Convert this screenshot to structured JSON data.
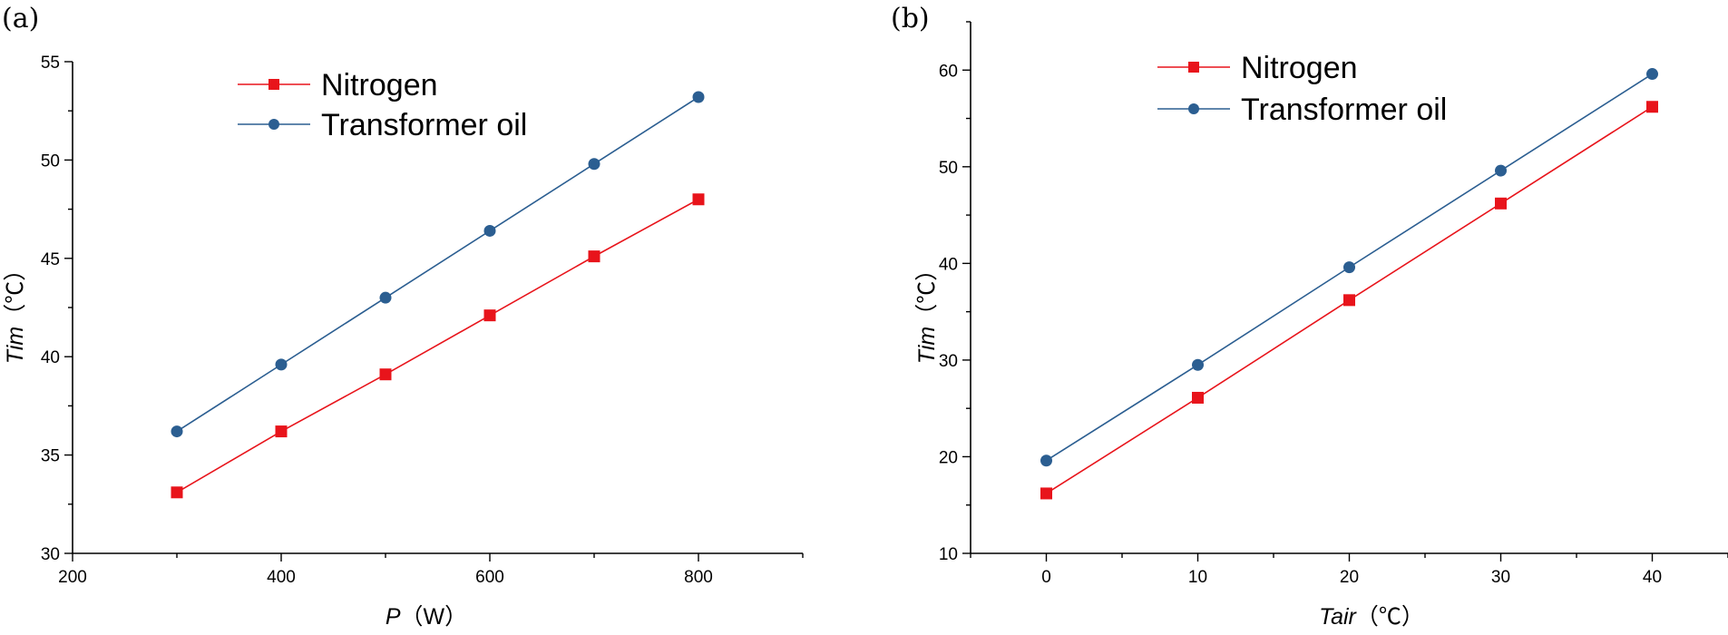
{
  "chart_data": [
    {
      "type": "line",
      "panel_label": "(a)",
      "title": "",
      "x": [
        300,
        400,
        500,
        600,
        700,
        800
      ],
      "xlim": [
        200,
        900
      ],
      "ylim": [
        30,
        55
      ],
      "x_ticks": [
        200,
        400,
        600,
        800
      ],
      "y_ticks": [
        30,
        35,
        40,
        45,
        50,
        55
      ],
      "xlabel_var": "P",
      "xlabel_unit": "（W）",
      "ylabel_var": "Tim",
      "ylabel_unit": "（℃）",
      "grid": false,
      "legend_position": "top-center",
      "series": [
        {
          "name": "Nitrogen",
          "color": "#e8141b",
          "marker": "square",
          "values": [
            33.1,
            36.2,
            39.1,
            42.1,
            45.1,
            48.0
          ]
        },
        {
          "name": "Transformer oil",
          "color": "#2b5e91",
          "marker": "circle",
          "values": [
            36.2,
            39.6,
            43.0,
            46.4,
            49.8,
            53.2
          ]
        }
      ]
    },
    {
      "type": "line",
      "panel_label": "(b)",
      "title": "",
      "x": [
        0,
        10,
        20,
        30,
        40
      ],
      "xlim": [
        -5,
        45
      ],
      "ylim": [
        10,
        65
      ],
      "x_ticks": [
        0,
        10,
        20,
        30,
        40
      ],
      "y_ticks": [
        10,
        20,
        30,
        40,
        50,
        60
      ],
      "xlabel_var": "Tair",
      "xlabel_unit": "（℃）",
      "ylabel_var": "Tim",
      "ylabel_unit": "（℃）",
      "grid": false,
      "legend_position": "top-center",
      "series": [
        {
          "name": "Nitrogen",
          "color": "#e8141b",
          "marker": "square",
          "values": [
            16.2,
            26.1,
            36.2,
            46.2,
            56.2
          ]
        },
        {
          "name": "Transformer oil",
          "color": "#2b5e91",
          "marker": "circle",
          "values": [
            19.6,
            29.5,
            39.6,
            49.6,
            59.6
          ]
        }
      ]
    }
  ]
}
